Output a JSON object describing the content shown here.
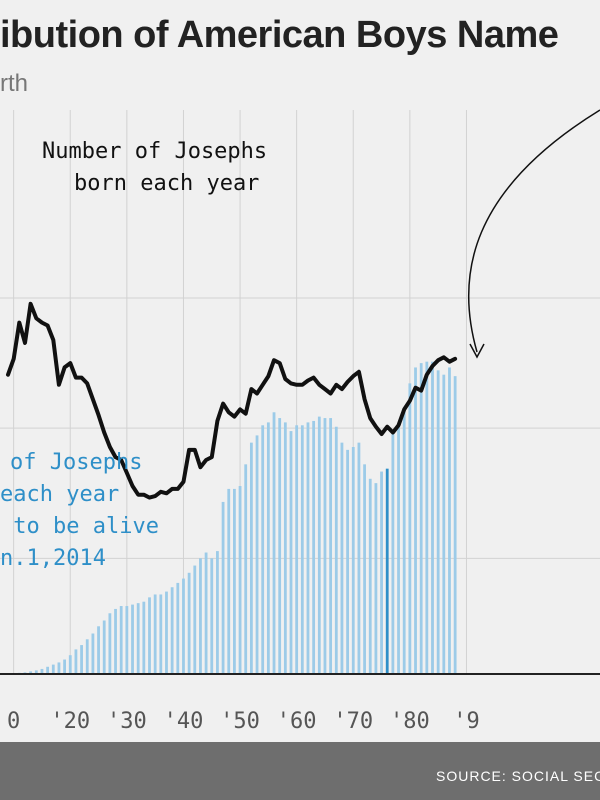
{
  "chart_data": {
    "type": "bar+line",
    "title": "ibution of American Boys Name",
    "subtitle": "rth",
    "x_tick_labels": [
      "0",
      "'20",
      "'30",
      "'40",
      "'50",
      "'60",
      "'70",
      "'80",
      "'9"
    ],
    "x_ticks": [
      1910,
      1920,
      1930,
      1940,
      1950,
      1960,
      1970,
      1980,
      1990
    ],
    "xlim": [
      1909,
      1988
    ],
    "ylim": [
      0,
      26000
    ],
    "grid": true,
    "annotations": {
      "line": [
        "Number of Josephs",
        "born each year"
      ],
      "bars": [
        "of Josephs",
        "each year",
        " to be alive",
        "n.1,2014"
      ]
    },
    "series": [
      {
        "kind": "line",
        "color": "#111111",
        "x": [
          1909,
          1910,
          1911,
          1912,
          1913,
          1914,
          1915,
          1916,
          1917,
          1918,
          1919,
          1920,
          1921,
          1922,
          1923,
          1924,
          1925,
          1926,
          1927,
          1928,
          1929,
          1930,
          1931,
          1932,
          1933,
          1934,
          1935,
          1936,
          1937,
          1938,
          1939,
          1940,
          1941,
          1942,
          1943,
          1944,
          1945,
          1946,
          1947,
          1948,
          1949,
          1950,
          1951,
          1952,
          1953,
          1954,
          1955,
          1956,
          1957,
          1958,
          1959,
          1960,
          1961,
          1962,
          1963,
          1964,
          1965,
          1966,
          1967,
          1968,
          1969,
          1970,
          1971,
          1972,
          1973,
          1974,
          1975,
          1976,
          1977,
          1978,
          1979,
          1980,
          1981,
          1982,
          1983,
          1984,
          1985,
          1986,
          1987,
          1988
        ],
        "values": [
          20700,
          21800,
          24300,
          22900,
          25600,
          24600,
          24300,
          24100,
          23100,
          20000,
          21200,
          21500,
          20500,
          20500,
          20100,
          19000,
          17900,
          16700,
          15700,
          15000,
          14800,
          13900,
          13000,
          12400,
          12400,
          12200,
          12300,
          12600,
          12500,
          12800,
          12800,
          13300,
          15500,
          15500,
          14300,
          14800,
          15000,
          17500,
          18700,
          18100,
          17800,
          18300,
          18000,
          19700,
          19400,
          20000,
          20600,
          21700,
          21500,
          20400,
          20100,
          20000,
          20000,
          20300,
          20500,
          20000,
          19700,
          19400,
          20000,
          19700,
          20200,
          20600,
          20900,
          19000,
          17700,
          17100,
          16600,
          17100,
          16700,
          17200,
          18300,
          18900,
          19800,
          19600,
          20700,
          21300,
          21700,
          21900,
          21600,
          21800
        ]
      },
      {
        "kind": "bar",
        "color": "#9ccbe8",
        "x": [
          1909,
          1910,
          1911,
          1912,
          1913,
          1914,
          1915,
          1916,
          1917,
          1918,
          1919,
          1920,
          1921,
          1922,
          1923,
          1924,
          1925,
          1926,
          1927,
          1928,
          1929,
          1930,
          1931,
          1932,
          1933,
          1934,
          1935,
          1936,
          1937,
          1938,
          1939,
          1940,
          1941,
          1942,
          1943,
          1944,
          1945,
          1946,
          1947,
          1948,
          1949,
          1950,
          1951,
          1952,
          1953,
          1954,
          1955,
          1956,
          1957,
          1958,
          1959,
          1960,
          1961,
          1962,
          1963,
          1964,
          1965,
          1966,
          1967,
          1968,
          1969,
          1970,
          1971,
          1972,
          1973,
          1974,
          1975,
          1976,
          1977,
          1978,
          1979,
          1980,
          1981,
          1982,
          1983,
          1984,
          1985,
          1986,
          1987,
          1988
        ],
        "values": [
          30,
          50,
          80,
          110,
          180,
          250,
          350,
          500,
          650,
          800,
          1000,
          1300,
          1700,
          2000,
          2400,
          2800,
          3300,
          3700,
          4200,
          4500,
          4700,
          4700,
          4800,
          4900,
          5000,
          5300,
          5500,
          5500,
          5700,
          6000,
          6300,
          6600,
          7000,
          7500,
          8000,
          8400,
          8000,
          8500,
          11900,
          12800,
          12800,
          13000,
          14500,
          16000,
          16500,
          17200,
          17400,
          18100,
          17700,
          17400,
          16800,
          17200,
          17200,
          17400,
          17500,
          17800,
          17700,
          17700,
          17100,
          16000,
          15500,
          15700,
          16000,
          14500,
          13500,
          13200,
          14000,
          14200,
          16800,
          17200,
          18400,
          20100,
          21200,
          21500,
          21600,
          21600,
          21000,
          20700,
          21200,
          20600
        ],
        "highlight_x": 1976,
        "highlight_color": "#2e8fc8"
      }
    ]
  },
  "footer": {
    "source": "SOURCE: SOCIAL SEC"
  },
  "colors": {
    "background": "#f0f0f0",
    "line": "#111111",
    "bars": "#9ccbe8",
    "highlight_bar": "#2e8fc8",
    "annotation_blue": "#2e8fc8",
    "footer": "#6e6e6e"
  }
}
